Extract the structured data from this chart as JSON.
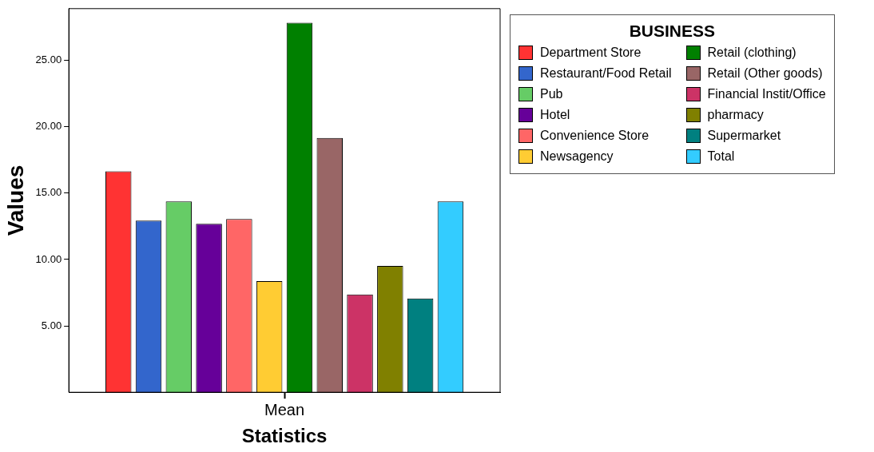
{
  "chart_data": {
    "type": "bar",
    "categories": [
      "Mean"
    ],
    "xlabel": "Statistics",
    "ylabel": "Values",
    "legend_title": "BUSINESS",
    "legend": "top right",
    "grid": false,
    "ylim": [
      0,
      28.9
    ],
    "yticks": [
      {
        "value": 5,
        "label": "5.00"
      },
      {
        "value": 10,
        "label": "10.00"
      },
      {
        "value": 15,
        "label": "15.00"
      },
      {
        "value": 20,
        "label": "20.00"
      },
      {
        "value": 25,
        "label": "25.00"
      }
    ],
    "series": [
      {
        "name": "Department Store",
        "color": "#ff3333",
        "values": [
          16.65
        ]
      },
      {
        "name": "Restaurant/Food Retail",
        "color": "#3366cc",
        "values": [
          12.93
        ]
      },
      {
        "name": "Pub",
        "color": "#66cc66",
        "values": [
          14.37
        ]
      },
      {
        "name": "Hotel",
        "color": "#660099",
        "values": [
          12.69
        ]
      },
      {
        "name": "Convenience Store",
        "color": "#ff6666",
        "values": [
          13.05
        ]
      },
      {
        "name": "Newsagency",
        "color": "#ffcc33",
        "values": [
          8.38
        ]
      },
      {
        "name": "Retail (clothing)",
        "color": "#008000",
        "values": [
          27.84
        ]
      },
      {
        "name": "Retail (Other goods)",
        "color": "#996666",
        "values": [
          19.16
        ]
      },
      {
        "name": "Financial Instit/Office",
        "color": "#cc3366",
        "values": [
          7.37
        ]
      },
      {
        "name": "pharmacy",
        "color": "#808000",
        "values": [
          9.52
        ]
      },
      {
        "name": "Supermarket",
        "color": "#008080",
        "values": [
          7.07
        ]
      },
      {
        "name": "Total",
        "color": "#33ccff",
        "values": [
          14.37
        ]
      }
    ]
  }
}
